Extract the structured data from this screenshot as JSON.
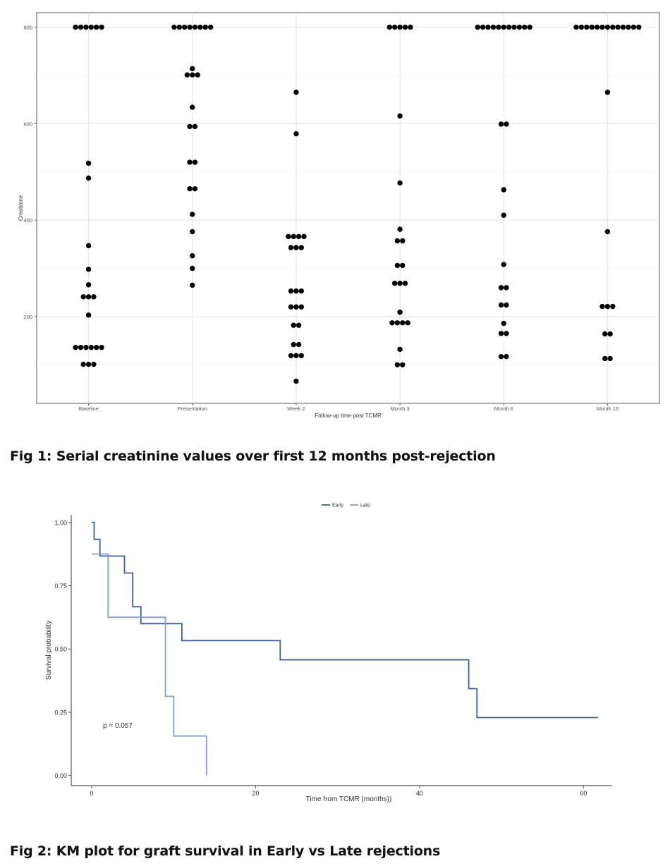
{
  "chart_data": [
    {
      "type": "scatter",
      "chart_style": "dot-strip",
      "caption": "Fig 1: Serial creatinine values over first 12 months post-rejection",
      "xlabel": "Follow-up time post TCMR",
      "ylabel": "Creatinine",
      "categories": [
        "Baseline",
        "Presentation",
        "Week 2",
        "Month 3",
        "Month 6",
        "Month 12"
      ],
      "y_ticks": [
        200,
        400,
        600,
        800
      ],
      "ylim": [
        20,
        830
      ],
      "grid": true,
      "dot_color": "#000000",
      "values": [
        [
          800,
          800,
          800,
          800,
          800,
          800,
          518,
          487,
          347,
          298,
          266,
          241,
          241,
          241,
          203,
          136,
          136,
          136,
          136,
          136,
          136,
          101,
          101,
          101
        ],
        [
          800,
          800,
          800,
          800,
          800,
          800,
          800,
          800,
          714,
          701,
          701,
          701,
          634,
          594,
          594,
          520,
          520,
          465,
          465,
          412,
          376,
          326,
          300,
          265
        ],
        [
          665,
          579,
          366,
          366,
          366,
          366,
          343,
          343,
          343,
          253,
          253,
          253,
          220,
          220,
          220,
          182,
          182,
          142,
          142,
          119,
          119,
          119,
          66
        ],
        [
          800,
          800,
          800,
          800,
          800,
          616,
          477,
          381,
          357,
          357,
          306,
          306,
          269,
          269,
          269,
          209,
          187,
          187,
          187,
          187,
          132,
          100,
          100
        ],
        [
          800,
          800,
          800,
          800,
          800,
          800,
          800,
          800,
          800,
          800,
          800,
          599,
          599,
          463,
          410,
          308,
          260,
          260,
          224,
          224,
          186,
          165,
          165,
          117,
          117
        ],
        [
          800,
          800,
          800,
          800,
          800,
          800,
          800,
          800,
          800,
          800,
          800,
          800,
          800,
          665,
          376,
          221,
          221,
          221,
          164,
          164,
          113,
          113
        ]
      ]
    },
    {
      "type": "line",
      "chart_style": "kaplan-meier step",
      "caption": "Fig 2: KM plot for graft survival in Early vs Late rejections",
      "xlabel": "Time from TCMR (months))",
      "ylabel": "Survival probability",
      "xlim": [
        -2.5,
        63.5
      ],
      "ylim": [
        -0.04,
        1.03
      ],
      "x_ticks": [
        0,
        20,
        40,
        60
      ],
      "y_ticks": [
        "0.00",
        "0.25",
        "0.50",
        "0.75",
        "1.00"
      ],
      "grid": false,
      "legend_position": "top",
      "annotation": "p = 0.057",
      "series": [
        {
          "name": "Early",
          "color": "#3d5f9e",
          "x": [
            0,
            0.3,
            0.3,
            1,
            1,
            4,
            4,
            5,
            5,
            6,
            6,
            11,
            11,
            23,
            23,
            46,
            46,
            47,
            47,
            61.8
          ],
          "y": [
            1.0,
            1.0,
            0.933,
            0.933,
            0.867,
            0.867,
            0.8,
            0.8,
            0.667,
            0.667,
            0.6,
            0.6,
            0.533,
            0.533,
            0.457,
            0.457,
            0.343,
            0.343,
            0.229,
            0.229
          ]
        },
        {
          "name": "Late",
          "color": "#7ea0d4",
          "x": [
            0,
            1,
            1,
            2,
            2,
            9,
            9,
            10,
            10,
            14,
            14
          ],
          "y": [
            0.875,
            0.875,
            0.875,
            0.875,
            0.625,
            0.625,
            0.3125,
            0.3125,
            0.156,
            0.156,
            0.0
          ]
        }
      ]
    }
  ]
}
